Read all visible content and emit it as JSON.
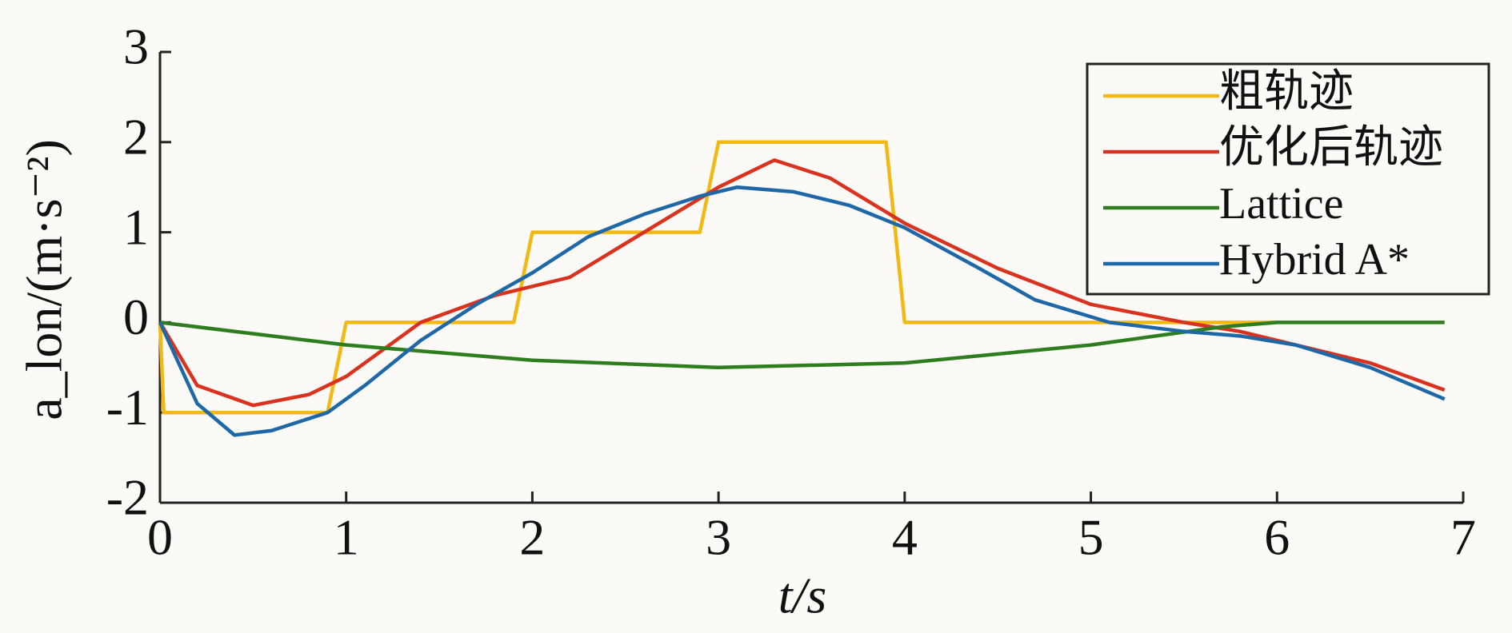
{
  "chart_data": {
    "type": "line",
    "x_label": "t/s",
    "y_label": "a_lon/(m·s⁻²)",
    "xlim": [
      0,
      7
    ],
    "ylim": [
      -2,
      3
    ],
    "xticks": [
      0,
      1,
      2,
      3,
      4,
      5,
      6,
      7
    ],
    "yticks": [
      -2,
      -1,
      0,
      1,
      2,
      3
    ],
    "legend": "upper right",
    "series": [
      {
        "name": "粗轨迹",
        "color": "#f2b814",
        "x": [
          0,
          0.02,
          0.9,
          1.0,
          1.9,
          2.0,
          2.9,
          3.0,
          3.9,
          4.0,
          6.0
        ],
        "values": [
          0,
          -1,
          -1,
          0,
          0,
          1,
          1,
          2,
          2,
          0,
          0
        ]
      },
      {
        "name": "优化后轨迹",
        "color": "#d9321e",
        "x": [
          0,
          0.2,
          0.5,
          0.8,
          1.0,
          1.4,
          1.8,
          2.2,
          2.6,
          3.0,
          3.3,
          3.6,
          4.0,
          4.5,
          5.0,
          5.5,
          5.8,
          6.0,
          6.5,
          6.9
        ],
        "values": [
          0,
          -0.7,
          -0.92,
          -0.8,
          -0.6,
          0,
          0.3,
          0.5,
          1.0,
          1.5,
          1.8,
          1.6,
          1.1,
          0.6,
          0.2,
          0,
          -0.1,
          -0.2,
          -0.45,
          -0.75
        ]
      },
      {
        "name": "Lattice",
        "color": "#2e7d1e",
        "x": [
          0,
          1,
          2,
          3,
          4,
          5,
          5.7,
          6,
          6.9
        ],
        "values": [
          0,
          -0.25,
          -0.42,
          -0.5,
          -0.45,
          -0.25,
          -0.05,
          0,
          0
        ]
      },
      {
        "name": "Hybrid A*",
        "color": "#1f68a8",
        "x": [
          0,
          0.2,
          0.4,
          0.6,
          0.9,
          1.1,
          1.4,
          1.7,
          2.0,
          2.3,
          2.6,
          2.9,
          3.1,
          3.4,
          3.7,
          4.0,
          4.4,
          4.7,
          5.1,
          5.5,
          5.8,
          6.1,
          6.5,
          6.9
        ],
        "values": [
          0,
          -0.9,
          -1.25,
          -1.2,
          -1.0,
          -0.7,
          -0.2,
          0.2,
          0.55,
          0.95,
          1.2,
          1.4,
          1.5,
          1.45,
          1.3,
          1.05,
          0.6,
          0.25,
          0,
          -0.1,
          -0.15,
          -0.25,
          -0.5,
          -0.85
        ]
      }
    ]
  }
}
